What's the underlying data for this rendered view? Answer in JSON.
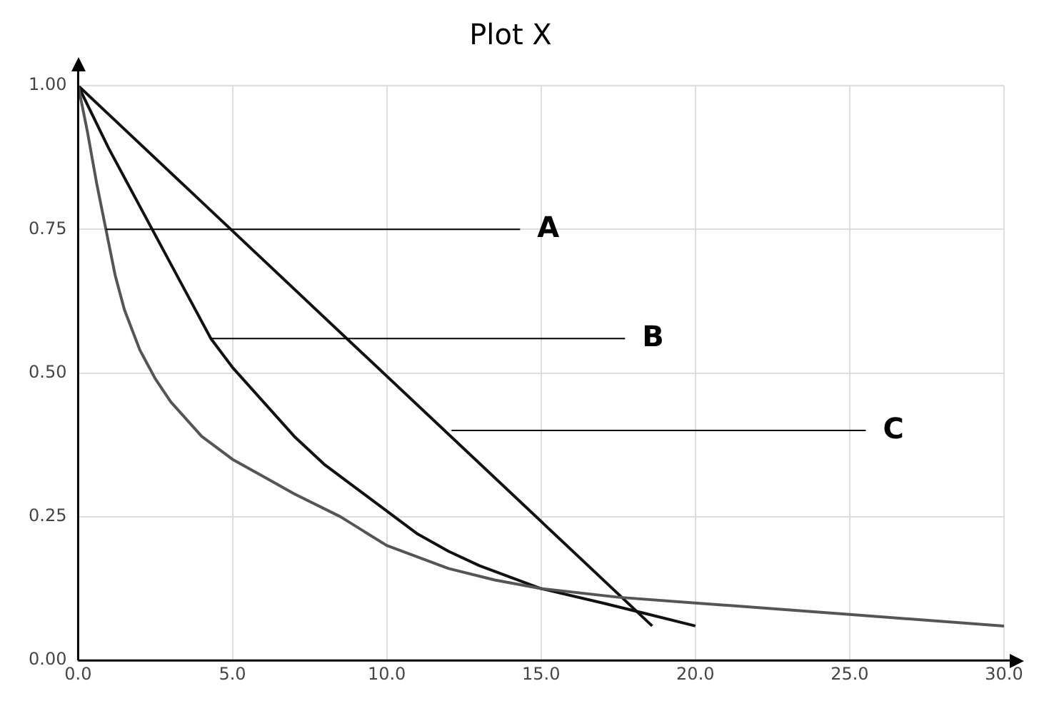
{
  "chart_data": {
    "type": "line",
    "title": "Plot X",
    "series": [
      {
        "color": "#555555",
        "x": [
          0,
          0.3,
          0.6,
          0.9,
          1.2,
          1.5,
          2,
          2.5,
          3,
          4,
          5,
          6,
          7,
          8.5,
          10,
          12,
          13.5,
          15,
          17.5,
          20,
          25,
          30
        ],
        "values": [
          1,
          0.92,
          0.83,
          0.75,
          0.67,
          0.61,
          0.54,
          0.49,
          0.45,
          0.39,
          0.35,
          0.32,
          0.29,
          0.25,
          0.2,
          0.16,
          0.14,
          0.125,
          0.11,
          0.1,
          0.08,
          0.06
        ]
      },
      {
        "color": "#111111",
        "x": [
          0,
          1,
          2,
          3,
          4.3,
          5,
          6,
          7,
          8,
          9,
          10,
          11,
          12,
          13,
          15,
          17,
          18.5,
          20
        ],
        "values": [
          1,
          0.89,
          0.79,
          0.69,
          0.56,
          0.51,
          0.45,
          0.39,
          0.34,
          0.3,
          0.26,
          0.22,
          0.19,
          0.165,
          0.125,
          0.1,
          0.08,
          0.06
        ]
      },
      {
        "color": "#111111",
        "x": [
          0,
          18.6
        ],
        "values": [
          1,
          0.06
        ]
      }
    ],
    "annotations": [
      {
        "text": "A",
        "x": 0.9,
        "y": 0.75
      },
      {
        "text": "B",
        "x": 4.3,
        "y": 0.56
      },
      {
        "text": "C",
        "x": 12.1,
        "y": 0.4
      }
    ],
    "xlim": [
      0,
      30
    ],
    "xticks": [
      {
        "value": 0,
        "label": "0.0"
      },
      {
        "value": 5,
        "label": "5.0"
      },
      {
        "value": 10,
        "label": "10.0"
      },
      {
        "value": 15,
        "label": "15.0"
      },
      {
        "value": 20,
        "label": "20.0"
      },
      {
        "value": 25,
        "label": "25.0"
      },
      {
        "value": 30,
        "label": "30.0"
      }
    ],
    "ylim": [
      0,
      1
    ],
    "yticks": [
      {
        "value": 0,
        "label": "0.00"
      },
      {
        "value": 0.25,
        "label": "0.25"
      },
      {
        "value": 0.5,
        "label": "0.50"
      },
      {
        "value": 0.75,
        "label": "0.75"
      },
      {
        "value": 1,
        "label": "1.00"
      }
    ],
    "grid": true,
    "legend": false,
    "marker": "none",
    "line_style": "solid"
  }
}
